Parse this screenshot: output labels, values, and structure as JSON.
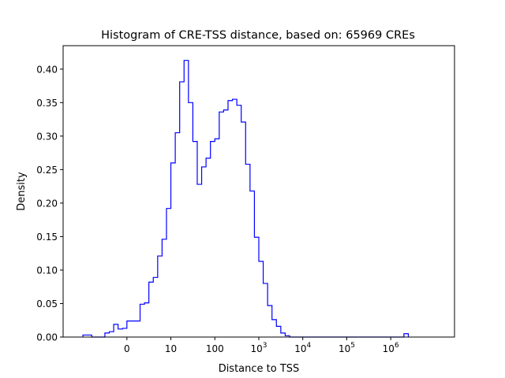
{
  "chart_data": {
    "type": "step",
    "title": "Histogram of CRE-TSS distance, based on: 65969 CREs",
    "xlabel": "Distance to TSS",
    "ylabel": "Density",
    "x_scale": "symlog",
    "xlim": [
      -1.45,
      7.45
    ],
    "ylim": [
      0,
      0.435
    ],
    "grid": false,
    "line_color": "#0000ff",
    "x_ticks": [
      {
        "label": "0",
        "exp": null
      },
      {
        "label": "10",
        "exp": null
      },
      {
        "label": "100",
        "exp": null
      },
      {
        "label": "10",
        "exp": "3"
      },
      {
        "label": "10",
        "exp": "4"
      },
      {
        "label": "10",
        "exp": "5"
      },
      {
        "label": "10",
        "exp": "6"
      }
    ],
    "y_ticks": [
      "0.00",
      "0.05",
      "0.10",
      "0.15",
      "0.20",
      "0.25",
      "0.30",
      "0.35",
      "0.40"
    ],
    "bin_width_decades": 0.1,
    "bins_start": -1.0,
    "densities": [
      0.003,
      0.003,
      0.0,
      0.0,
      0.0,
      0.006,
      0.008,
      0.019,
      0.012,
      0.013,
      0.024,
      0.024,
      0.024,
      0.049,
      0.051,
      0.082,
      0.089,
      0.121,
      0.146,
      0.192,
      0.26,
      0.305,
      0.381,
      0.413,
      0.35,
      0.292,
      0.228,
      0.254,
      0.267,
      0.292,
      0.296,
      0.336,
      0.339,
      0.353,
      0.355,
      0.346,
      0.321,
      0.258,
      0.218,
      0.149,
      0.113,
      0.08,
      0.047,
      0.026,
      0.016,
      0.006,
      0.002,
      0.0,
      0.0,
      0.0,
      0.0,
      0.0,
      0.0,
      0.0,
      0.0,
      0.0,
      0.0,
      0.0,
      0.0,
      0.0,
      0.0,
      0.0,
      0.0,
      0.0,
      0.0,
      0.0,
      0.0,
      0.0,
      0.0,
      0.0,
      0.0,
      0.0,
      0.0,
      0.005
    ]
  }
}
